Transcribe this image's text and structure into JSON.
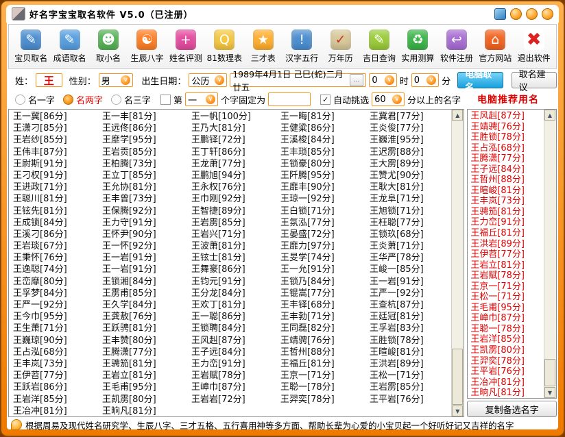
{
  "window": {
    "title": "好名字宝宝取名软件  V5.0（已注册）"
  },
  "colors": {
    "frame_orange": "#ee7a00",
    "accent_orange": "#f7941d",
    "button_blue": "#17a0dd",
    "recommend_red": "#e00000",
    "list_text": "#111111"
  },
  "toolbar": {
    "items": [
      {
        "id": "baby-naming",
        "label": "宝贝取名",
        "icon": "book-person-icon",
        "glyph": "✎",
        "bg": "#4e8fd0",
        "fg": "#ffffff"
      },
      {
        "id": "idiom-naming",
        "label": "成语取名",
        "icon": "paper-pencil-icon",
        "glyph": "✎",
        "bg": "#5aa0e0",
        "fg": "#ffffff"
      },
      {
        "id": "nickname",
        "label": "取小名",
        "icon": "two-people-icon",
        "glyph": "☻",
        "bg": "#56b356",
        "fg": "#ffffff"
      },
      {
        "id": "bazi",
        "label": "生辰八字",
        "icon": "yinyang-balls-icon",
        "glyph": "☯",
        "bg": "#ff7f27",
        "fg": "#ffffff"
      },
      {
        "id": "name-test",
        "label": "姓名评测",
        "icon": "speech-person-icon",
        "glyph": "+",
        "bg": "#e54ea0",
        "fg": "#ffffff"
      },
      {
        "id": "numerology",
        "label": "81数理表",
        "icon": "magnifier-pages-icon",
        "glyph": "Q",
        "bg": "#f5c842",
        "fg": "#ffffff"
      },
      {
        "id": "sancai",
        "label": "三才表",
        "icon": "star-icon",
        "glyph": "★",
        "bg": "#ffb030",
        "fg": "#ffffff"
      },
      {
        "id": "hanzi-wuxing",
        "label": "汉字五行",
        "icon": "person-exclaim-icon",
        "glyph": "!",
        "bg": "#4e8fd0",
        "fg": "#ffffff"
      },
      {
        "id": "calendar",
        "label": "万年历",
        "icon": "clipboard-check-icon",
        "glyph": "✓",
        "bg": "#d8c89a",
        "fg": "#c0392b"
      },
      {
        "id": "lucky-day",
        "label": "吉日查询",
        "icon": "wrench-panel-icon",
        "glyph": "✎",
        "bg": "#9ccc3c",
        "fg": "#ffffff"
      },
      {
        "id": "calculation",
        "label": "实用测算",
        "icon": "recycle-arrows-icon",
        "glyph": "♻",
        "bg": "#3cb54a",
        "fg": "#ffffff"
      },
      {
        "id": "register",
        "label": "软件注册",
        "icon": "back-arrow-icon",
        "glyph": "↩",
        "bg": "#a96fd4",
        "fg": "#ffffff"
      },
      {
        "id": "website",
        "label": "官方网站",
        "icon": "house-icon",
        "glyph": "⌂",
        "bg": "#f26522",
        "fg": "#ffffff"
      },
      {
        "id": "exit",
        "label": "退出软件",
        "icon": "red-cross-icon",
        "glyph": "✖",
        "bg": "#ffffff",
        "fg": "#dd2222"
      }
    ]
  },
  "form": {
    "surname_label": "姓：",
    "surname_value": "王",
    "gender_label": "性别：",
    "gender_value": "男",
    "birth_label": "出生日期：",
    "calendar_value": "公历",
    "date_value": "1989年4月1日 己巳(蛇)二月廿五",
    "ellipsis_button": "...",
    "hour_value": "0",
    "hour_label": "时",
    "minute_value": "0",
    "minute_label": "分",
    "compute_button": "电脑取名",
    "suggest_button": "取名建议",
    "radio_one_label": "名一字",
    "radio_two_label": "名两字",
    "radio_three_label": "名三字",
    "fixed_pre_label": "第",
    "fixed_pos_value": "一",
    "fixed_post_label": "个字固定为",
    "auto_check_glyph": "✓",
    "auto_pick_label": "自动挑选",
    "auto_pick_score": "60",
    "auto_pick_suffix": "分以上的名字",
    "recommend_title": "电脑推荐用名"
  },
  "name_list": {
    "columns": [
      [
        "王一冀[86分]",
        "王潇刁[85分]",
        "王岩纱[85分]",
        "王伟丰[87分]",
        "王尉斯[91分]",
        "王刁权[91分]",
        "王进政[71分]",
        "王聪川[81分]",
        "王铉先[81分]",
        "王成锁[84分]",
        "王溪刁[86分]",
        "王岩琰[67分]",
        "王秉怀[76分]",
        "王逸聪[74分]",
        "王峦靡[80分]",
        "王孚梦[84分]",
        "王严一[92分]",
        "王今巾[95分]",
        "王生萧[71分]",
        "王巍琼[90分]",
        "王占泓[68分]",
        "王丰岚[73分]",
        "王伊苕[77分]",
        "王跃岩[86分]",
        "王岩洋[85分]",
        "王冶冲[81分]"
      ],
      [
        "王一丰[81分]",
        "王远佟[86分]",
        "王靡学[95分]",
        "王岩贡[85分]",
        "王柏腾[73分]",
        "王立丁[85分]",
        "王允协[81分]",
        "王丰曾[73分]",
        "王保腾[92分]",
        "王力守[91分]",
        "王怀尹[90分]",
        "王一怀[92分]",
        "王一岩[91分]",
        "王一岩[91分]",
        "王锁湘[84分]",
        "王雳甫[85分]",
        "王久学[84分]",
        "王龚敖[76分]",
        "王跃骋[81分]",
        "王丰赞[80分]",
        "王腾潇[77分]",
        "王骋笳[81分]",
        "王岩立[81分]",
        "王毛甫[95分]",
        "王凯雳[80分]",
        "王晌凡[81分]"
      ],
      [
        "王一帆[100分]",
        "王乃大[81分]",
        "王鹏铎[72分]",
        "王丁轩[86分]",
        "王龙萧[77分]",
        "王鹏旭[94分]",
        "王永权[76分]",
        "王巾刚[92分]",
        "王智捷[89分]",
        "王岩雳[85分]",
        "王岩兴[71分]",
        "王波萧[81分]",
        "王铉士[81分]",
        "王舞豪[86分]",
        "王钧元[91分]",
        "王分龙[84分]",
        "王欢丁[81分]",
        "王一聪[86分]",
        "王锁聘[84分]",
        "王风赳[87分]",
        "王子远[84分]",
        "王力峦[91分]",
        "王岩赋[78分]",
        "王嶂巾[87分]",
        "王岩岩[72分]"
      ],
      [
        "王一晦[81分]",
        "王健粱[86分]",
        "王溪梭[84分]",
        "王丰琐[85分]",
        "王锁豪[80分]",
        "王阡腾[95分]",
        "王靡丰[90分]",
        "王琼一[92分]",
        "王白锁[71分]",
        "王氛泓[77分]",
        "王晏盛[72分]",
        "王靡力[97分]",
        "王旻学[74分]",
        "王一允[91分]",
        "王锁乃[84分]",
        "王锟嵩[77分]",
        "王丰铎[68分]",
        "王丰勃[71分]",
        "王同磊[82分]",
        "王靖骋[76分]",
        "王哲州[88分]",
        "王福丘[81分]",
        "王京一[71分]",
        "王聪一[78分]",
        "王羿奕[78分]"
      ],
      [
        "王冀君[77分]",
        "王炎俊[77分]",
        "王巍淮[95分]",
        "王迟雳[88分]",
        "王大雳[89分]",
        "王赞尤[90分]",
        "王耿大[81分]",
        "王龙阜[71分]",
        "王旭锁[71分]",
        "王枉聪[77分]",
        "王锁玖[68分]",
        "王炎萧[71分]",
        "王华严[78分]",
        "王峻一[85分]",
        "王一岩[91分]",
        "王严一[92分]",
        "王查杭[87分]",
        "王廷冠[81分]",
        "王孚岩[83分]",
        "王胜锁[78分]",
        "王暄峻[81分]",
        "王洪岩[89分]",
        "王松一[71分]",
        "王岩雳[85分]",
        "王平岩[76分]"
      ]
    ]
  },
  "sidebar": {
    "names": [
      "王风赳[87分]",
      "王靖骋[76分]",
      "王胜锁[78分]",
      "王占泓[68分]",
      "王腾潇[77分]",
      "王子远[84分]",
      "王哲州[88分]",
      "王暄峻[81分]",
      "王丰岚[73分]",
      "王骋笳[81分]",
      "王力峦[91分]",
      "王福丘[81分]",
      "王洪岩[89分]",
      "王伊苕[77分]",
      "王岩立[81分]",
      "王岩赋[78分]",
      "王京一[71分]",
      "王松一[71分]",
      "王毛甫[95分]",
      "王嶂巾[87分]",
      "王聪一[78分]",
      "王岩洋[85分]",
      "王凯雳[80分]",
      "王羿奕[78分]",
      "王平岩[76分]",
      "王冶冲[81分]",
      "王晌凡[81分]"
    ],
    "copy_button": "复制备选名字"
  },
  "status_bar": {
    "text": "根据周易及现代姓名研究学、生辰八字、三才五格、五行喜用神等多方面、帮助长辈为心爱的小宝贝起一个好听好记又吉祥的名字"
  }
}
